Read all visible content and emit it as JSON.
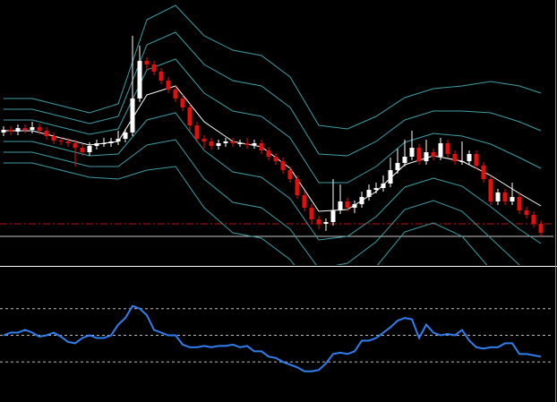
{
  "chart_data": [
    {
      "type": "candlestick",
      "open": [
        148,
        151,
        149,
        153,
        151,
        154,
        150,
        144,
        139,
        138,
        136,
        131,
        126,
        133,
        136,
        136,
        138,
        141,
        148,
        186,
        228,
        224,
        216,
        206,
        196,
        186,
        176,
        156,
        141,
        138,
        133,
        136,
        138,
        136,
        136,
        134,
        136,
        128,
        121,
        116,
        106,
        96,
        78,
        64,
        51,
        46,
        48,
        61,
        71,
        64,
        68,
        76,
        84,
        86,
        91,
        106,
        114,
        121,
        131,
        116,
        126,
        121,
        136,
        124,
        116,
        116,
        124,
        111,
        96,
        71,
        81,
        71,
        76,
        61,
        56,
        46
      ],
      "high": [
        155,
        155,
        157,
        157,
        160,
        158,
        154,
        148,
        143,
        142,
        140,
        135,
        137,
        140,
        142,
        142,
        150,
        152,
        256,
        245,
        232,
        228,
        220,
        210,
        200,
        190,
        180,
        160,
        145,
        142,
        140,
        142,
        142,
        140,
        142,
        140,
        140,
        132,
        125,
        120,
        110,
        100,
        82,
        68,
        55,
        52,
        96,
        90,
        75,
        72,
        82,
        90,
        92,
        100,
        120,
        130,
        140,
        150,
        135,
        140,
        130,
        142,
        140,
        128,
        138,
        128,
        128,
        115,
        100,
        85,
        85,
        92,
        80,
        65,
        60,
        50
      ],
      "low": [
        144,
        145,
        145,
        147,
        147,
        146,
        140,
        135,
        134,
        132,
        110,
        122,
        122,
        129,
        132,
        132,
        134,
        137,
        144,
        182,
        218,
        212,
        202,
        192,
        182,
        172,
        150,
        137,
        130,
        129,
        129,
        132,
        132,
        132,
        130,
        130,
        124,
        117,
        112,
        102,
        92,
        74,
        60,
        46,
        40,
        38,
        44,
        57,
        60,
        58,
        64,
        72,
        80,
        82,
        87,
        102,
        110,
        117,
        112,
        112,
        117,
        117,
        120,
        112,
        112,
        112,
        107,
        92,
        67,
        67,
        67,
        67,
        57,
        52,
        42,
        32
      ],
      "close": [
        151,
        149,
        153,
        151,
        154,
        150,
        144,
        139,
        138,
        136,
        131,
        126,
        133,
        136,
        136,
        138,
        141,
        148,
        186,
        228,
        224,
        216,
        206,
        196,
        186,
        176,
        156,
        141,
        138,
        133,
        136,
        138,
        136,
        136,
        134,
        136,
        128,
        121,
        116,
        106,
        96,
        78,
        64,
        51,
        46,
        48,
        61,
        71,
        64,
        68,
        76,
        84,
        86,
        91,
        106,
        114,
        121,
        131,
        116,
        126,
        121,
        136,
        124,
        116,
        116,
        124,
        111,
        96,
        71,
        81,
        71,
        76,
        61,
        56,
        46,
        36
      ],
      "up_color": "#ffffff",
      "down_color": "#e01010",
      "ylim": [
        0,
        296
      ],
      "bands": {
        "x": [
          0,
          4,
          8,
          12,
          16,
          20,
          24,
          28,
          32,
          36,
          40,
          44,
          48,
          52,
          56,
          60,
          64,
          68,
          72,
          75
        ],
        "series": [
          {
            "color": "#ffffff",
            "values": [
              150,
              150,
              142,
              134,
              138,
              190,
              200,
              160,
              138,
              132,
              108,
              60,
              62,
              82,
              112,
              122,
              116,
              100,
              80,
              66
            ]
          },
          {
            "color": "#3f9ea6",
            "values": [
              162,
              162,
              154,
              146,
              152,
              218,
              230,
              192,
              172,
              166,
              142,
              92,
              92,
              110,
              137,
              147,
              144,
              135,
              120,
              108
            ]
          },
          {
            "color": "#3f9ea6",
            "values": [
              174,
              174,
              166,
              158,
              166,
              246,
              260,
              224,
              206,
              200,
              176,
              124,
              122,
              138,
              162,
              172,
              172,
              170,
              160,
              150
            ]
          },
          {
            "color": "#3f9ea6",
            "values": [
              186,
              186,
              178,
              170,
              180,
              274,
              290,
              256,
              240,
              234,
              210,
              156,
              152,
              166,
              187,
              197,
              200,
              205,
              200,
              192
            ]
          },
          {
            "color": "#3f9ea6",
            "values": [
              138,
              138,
              130,
              122,
              124,
              162,
              170,
              128,
              104,
              98,
              74,
              28,
              32,
              54,
              87,
              97,
              88,
              65,
              40,
              24
            ]
          },
          {
            "color": "#3f9ea6",
            "values": [
              126,
              126,
              118,
              110,
              110,
              134,
              140,
              96,
              70,
              64,
              40,
              -4,
              2,
              26,
              62,
              72,
              60,
              30,
              0,
              -18
            ]
          },
          {
            "color": "#3f9ea6",
            "values": [
              114,
              114,
              106,
              98,
              96,
              106,
              110,
              64,
              36,
              30,
              6,
              -36,
              -28,
              -2,
              37,
              47,
              32,
              -5,
              -40,
              -60
            ]
          }
        ]
      },
      "hlines": [
        {
          "value": 46,
          "color": "#c01010",
          "dash": true
        },
        {
          "value": 32,
          "color": "#c8c8c8",
          "dash": false
        }
      ]
    },
    {
      "type": "line",
      "values": [
        50,
        52,
        52,
        54,
        52,
        49,
        50,
        52,
        49,
        45,
        44,
        48,
        50,
        48,
        48,
        50,
        58,
        63,
        72,
        70,
        65,
        54,
        52,
        50,
        50,
        43,
        41,
        41,
        42,
        41,
        42,
        42,
        43,
        41,
        42,
        38,
        38,
        34,
        33,
        30,
        28,
        26,
        23,
        23,
        24,
        29,
        36,
        37,
        36,
        38,
        46,
        46,
        48,
        52,
        56,
        61,
        63,
        62,
        48,
        58,
        52,
        50,
        51,
        50,
        54,
        46,
        41,
        40,
        41,
        41,
        44,
        44,
        36,
        36,
        35,
        34
      ],
      "color": "#2f7ff0",
      "ylim": [
        0,
        100
      ],
      "yticks": [
        30,
        50,
        70
      ],
      "grid": true
    }
  ]
}
